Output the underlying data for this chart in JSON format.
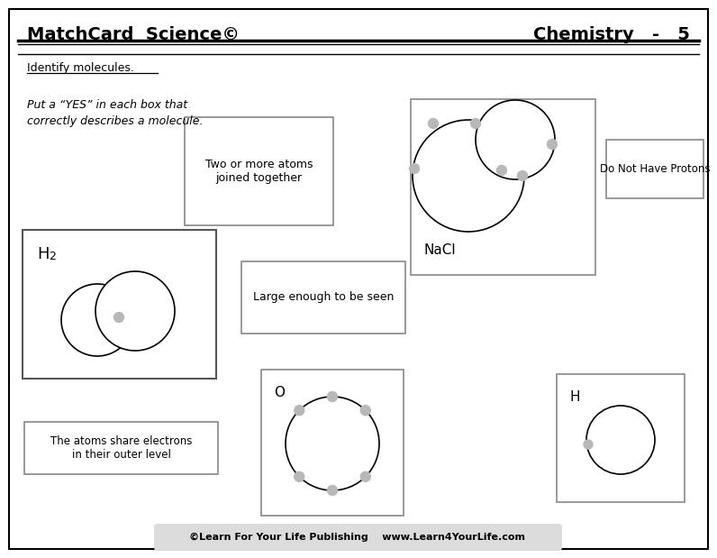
{
  "title_left": "MatchCard  Science©",
  "title_right": "Chemistry   -   5",
  "subtitle": "Identify molecules.",
  "instruction": "Put a “YES” in each box that\ncorrectly describes a molecule.",
  "box1_text": "Two or more atoms\njoined together",
  "box2_text": "Large enough to be seen",
  "box3_text": "Do Not Have Protons",
  "box5_label": "NaCl",
  "box6_label": "O",
  "box7_label": "H",
  "footer_text": "©Learn For Your Life Publishing    www.Learn4YourLife.com",
  "dot_color": "#b8b8b8",
  "bg_color": "#ffffff",
  "line_color": "#000000"
}
